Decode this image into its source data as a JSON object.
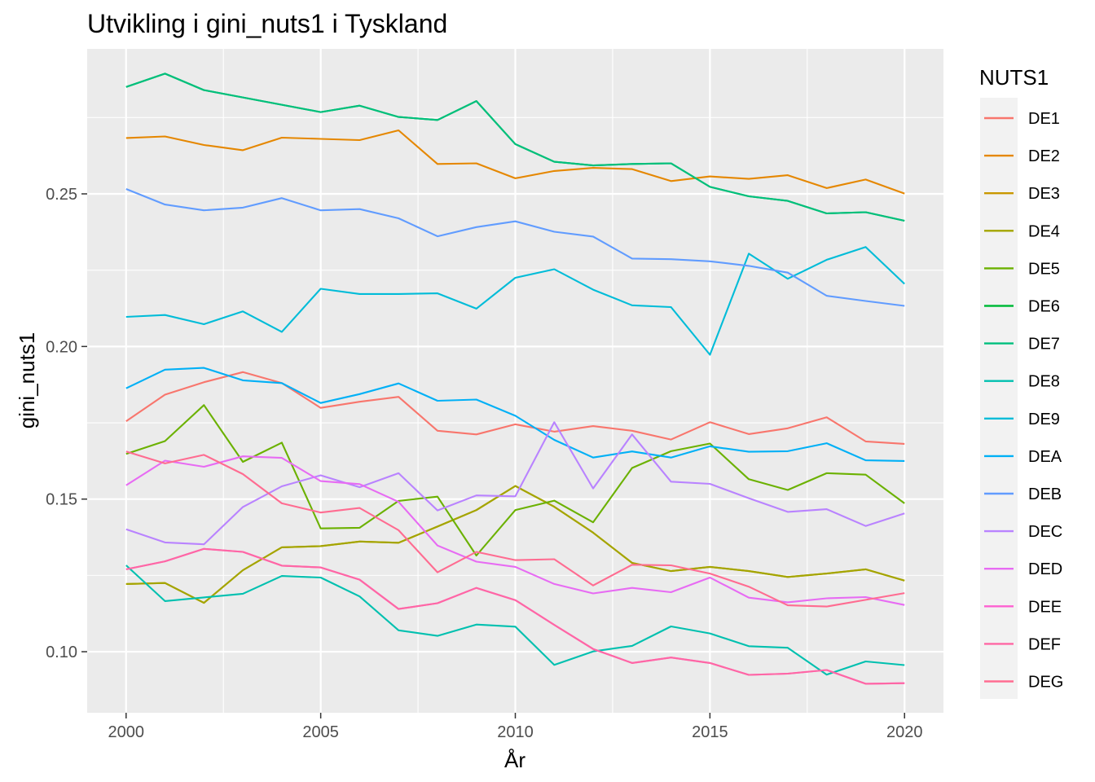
{
  "chart_data": {
    "type": "line",
    "title": "Utvikling i gini_nuts1 i Tyskland",
    "xlabel": "År",
    "ylabel": "gini_nuts1",
    "xlim": [
      1999.0,
      2021.0
    ],
    "ylim": [
      0.08,
      0.2975
    ],
    "x_ticks": [
      2000,
      2005,
      2010,
      2015,
      2020
    ],
    "x_tick_labels": [
      "2000",
      "2005",
      "2010",
      "2015",
      "2020"
    ],
    "y_ticks": [
      0.1,
      0.15,
      0.2,
      0.25
    ],
    "y_tick_labels": [
      "0.10",
      "0.15",
      "0.20",
      "0.25"
    ],
    "grid": true,
    "legend_title": "NUTS1",
    "legend_position": "right",
    "x": [
      2000,
      2001,
      2002,
      2003,
      2004,
      2005,
      2006,
      2007,
      2008,
      2009,
      2010,
      2011,
      2012,
      2013,
      2014,
      2015,
      2016,
      2017,
      2018,
      2019,
      2020
    ],
    "series": [
      {
        "name": "DE1",
        "color": "#F8766D",
        "values": [
          0.1755,
          0.1842,
          0.1883,
          0.1916,
          0.188,
          0.1799,
          0.1819,
          0.1835,
          0.1724,
          0.1712,
          0.1745,
          0.1721,
          0.1739,
          0.1724,
          0.1695,
          0.1752,
          0.1713,
          0.1732,
          0.1768,
          0.1689,
          0.1681
        ]
      },
      {
        "name": "DE2",
        "color": "#E58700",
        "values": [
          0.2683,
          0.2688,
          0.266,
          0.2643,
          0.2684,
          0.268,
          0.2676,
          0.2708,
          0.2598,
          0.26,
          0.2551,
          0.2575,
          0.2585,
          0.2581,
          0.2542,
          0.2557,
          0.2549,
          0.2561,
          0.2519,
          0.2547,
          0.2501
        ]
      },
      {
        "name": "DE3",
        "color": "#C99800",
        "values": [
          0.1222,
          0.1225,
          0.116,
          0.1267,
          0.1342,
          0.1346,
          0.1361,
          0.1357,
          0.141,
          0.1464,
          0.1543,
          0.1475,
          0.139,
          0.1291,
          0.1264,
          0.1278,
          0.1264,
          0.1245,
          0.1256,
          0.127,
          0.1233
        ]
      },
      {
        "name": "DE4",
        "color": "#A3A500",
        "values": [
          0.1222,
          0.1225,
          0.116,
          0.1267,
          0.1342,
          0.1346,
          0.1361,
          0.1357,
          0.141,
          0.1464,
          0.1543,
          0.1475,
          0.139,
          0.1291,
          0.1264,
          0.1278,
          0.1264,
          0.1245,
          0.1256,
          0.127,
          0.1233
        ]
      },
      {
        "name": "DE5",
        "color": "#6BB100",
        "values": [
          0.1648,
          0.169,
          0.1808,
          0.1622,
          0.1685,
          0.1404,
          0.1406,
          0.1494,
          0.1508,
          0.1315,
          0.1464,
          0.1495,
          0.1424,
          0.1602,
          0.1657,
          0.1682,
          0.1565,
          0.153,
          0.1585,
          0.158,
          0.1486
        ]
      },
      {
        "name": "DE6",
        "color": "#00BA38",
        "values": [
          0.285,
          0.2894,
          0.284,
          0.2816,
          0.2792,
          0.2768,
          0.2789,
          0.2752,
          0.2742,
          0.2804,
          0.2663,
          0.2605,
          0.2593,
          0.2598,
          0.26,
          0.2523,
          0.2492,
          0.2477,
          0.2436,
          0.244,
          0.2412
        ]
      },
      {
        "name": "DE7",
        "color": "#00BF7D",
        "values": [
          0.285,
          0.2894,
          0.284,
          0.2816,
          0.2792,
          0.2768,
          0.2789,
          0.2752,
          0.2742,
          0.2804,
          0.2663,
          0.2605,
          0.2593,
          0.2598,
          0.26,
          0.2523,
          0.2492,
          0.2477,
          0.2436,
          0.244,
          0.2412
        ]
      },
      {
        "name": "DE8",
        "color": "#00C0AF",
        "values": [
          0.1283,
          0.1166,
          0.1178,
          0.119,
          0.1248,
          0.1243,
          0.1181,
          0.107,
          0.1052,
          0.1089,
          0.1082,
          0.0957,
          0.1001,
          0.1019,
          0.1083,
          0.106,
          0.1018,
          0.1013,
          0.0925,
          0.0968,
          0.0956
        ]
      },
      {
        "name": "DE9",
        "color": "#00BCD8",
        "values": [
          0.2097,
          0.2103,
          0.2073,
          0.2115,
          0.2048,
          0.2189,
          0.2172,
          0.2172,
          0.2174,
          0.2124,
          0.2225,
          0.2253,
          0.2186,
          0.2135,
          0.2129,
          0.1973,
          0.2304,
          0.2222,
          0.2284,
          0.2326,
          0.2205
        ]
      },
      {
        "name": "DEA",
        "color": "#00B0F6",
        "values": [
          0.1863,
          0.1924,
          0.193,
          0.1889,
          0.188,
          0.1815,
          0.1844,
          0.1879,
          0.1822,
          0.1826,
          0.1773,
          0.1694,
          0.1636,
          0.1656,
          0.1636,
          0.1673,
          0.1655,
          0.1657,
          0.1683,
          0.1627,
          0.1625
        ]
      },
      {
        "name": "DEB",
        "color": "#619CFF",
        "values": [
          0.2516,
          0.2465,
          0.2446,
          0.2455,
          0.2486,
          0.2446,
          0.245,
          0.242,
          0.2361,
          0.2391,
          0.241,
          0.2376,
          0.236,
          0.2288,
          0.2286,
          0.2279,
          0.2264,
          0.2242,
          0.2166,
          0.2149,
          0.2133
        ]
      },
      {
        "name": "DEC",
        "color": "#B983FF",
        "values": [
          0.1401,
          0.1358,
          0.1352,
          0.1474,
          0.1542,
          0.1578,
          0.1539,
          0.1585,
          0.1463,
          0.1512,
          0.1509,
          0.1752,
          0.1535,
          0.1712,
          0.1557,
          0.155,
          0.1503,
          0.1458,
          0.1467,
          0.1412,
          0.1453
        ]
      },
      {
        "name": "DED",
        "color": "#E76BF3",
        "values": [
          0.1545,
          0.1626,
          0.1606,
          0.164,
          0.1635,
          0.1559,
          0.1549,
          0.1491,
          0.1348,
          0.1295,
          0.1278,
          0.1222,
          0.1191,
          0.1209,
          0.1195,
          0.1243,
          0.1177,
          0.1162,
          0.1175,
          0.1179,
          0.1153
        ]
      },
      {
        "name": "DEE",
        "color": "#FD61D1",
        "values": [
          0.127,
          0.1296,
          0.1337,
          0.1327,
          0.1282,
          0.1276,
          0.1236,
          0.114,
          0.1159,
          0.1209,
          0.1169,
          0.1088,
          0.1009,
          0.0963,
          0.0981,
          0.0963,
          0.0924,
          0.0928,
          0.094,
          0.0895,
          0.0897
        ]
      },
      {
        "name": "DEF",
        "color": "#FF67A4",
        "values": [
          0.127,
          0.1296,
          0.1337,
          0.1327,
          0.1282,
          0.1276,
          0.1236,
          0.114,
          0.1159,
          0.1209,
          0.1169,
          0.1088,
          0.1009,
          0.0963,
          0.0981,
          0.0963,
          0.0924,
          0.0928,
          0.094,
          0.0895,
          0.0897
        ]
      },
      {
        "name": "DEG",
        "color": "#FF6C91",
        "values": [
          0.1656,
          0.1617,
          0.1645,
          0.1582,
          0.1486,
          0.1456,
          0.1471,
          0.1398,
          0.126,
          0.1327,
          0.13,
          0.1303,
          0.1217,
          0.1285,
          0.1283,
          0.1256,
          0.1213,
          0.1152,
          0.1148,
          0.117,
          0.1192
        ]
      }
    ]
  }
}
